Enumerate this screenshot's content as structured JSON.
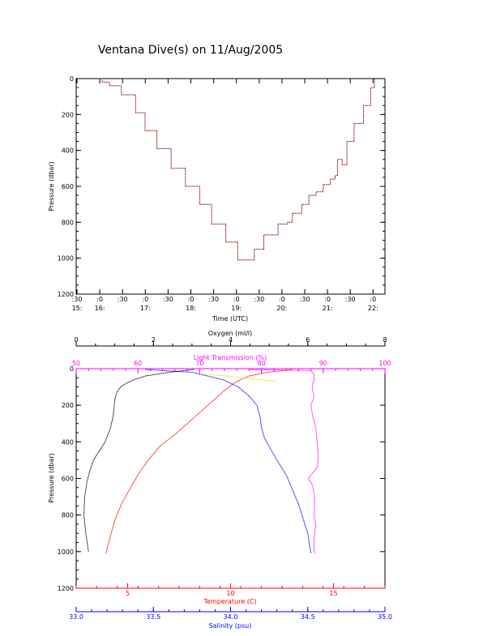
{
  "title": "Ventana Dive(s) on 11/Aug/2005",
  "colors": {
    "black": "#000000",
    "red": "#ff0000",
    "blue": "#0000ff",
    "magenta": "#ff00ff",
    "yellow": "#e6e600",
    "trace": "#8b0000"
  },
  "chart_data": [
    {
      "type": "line",
      "title": "Ventana Dive(s) on 11/Aug/2005",
      "xlabel": "Time (UTC)",
      "ylabel": "Pressure (dbar)",
      "ylim": [
        1200,
        0
      ],
      "yticks": [
        "0",
        "200",
        "400",
        "600",
        "800",
        "1000",
        "1200"
      ],
      "xticks": [
        {
          "top": ":30",
          "bottom": "15:"
        },
        {
          "top": ":0",
          "bottom": "16:"
        },
        {
          "top": ":30",
          "bottom": ""
        },
        {
          "top": ":0",
          "bottom": "17:"
        },
        {
          "top": ":30",
          "bottom": ""
        },
        {
          "top": ":0",
          "bottom": "18:"
        },
        {
          "top": ":30",
          "bottom": ""
        },
        {
          "top": ":0",
          "bottom": "19:"
        },
        {
          "top": ":30",
          "bottom": ""
        },
        {
          "top": ":0",
          "bottom": "20:"
        },
        {
          "top": ":30",
          "bottom": ""
        },
        {
          "top": ":0",
          "bottom": "21:"
        },
        {
          "top": ":30",
          "bottom": ""
        },
        {
          "top": ":0",
          "bottom": "22:"
        }
      ],
      "xlim_hours": [
        15.5,
        22.0
      ],
      "series": [
        {
          "color": "#8b0000",
          "points": [
            [
              16.0,
              0
            ],
            [
              16.05,
              20
            ],
            [
              16.2,
              40
            ],
            [
              16.45,
              90
            ],
            [
              16.75,
              190
            ],
            [
              16.95,
              290
            ],
            [
              17.2,
              390
            ],
            [
              17.5,
              500
            ],
            [
              17.8,
              600
            ],
            [
              18.1,
              700
            ],
            [
              18.35,
              810
            ],
            [
              18.65,
              910
            ],
            [
              18.9,
              1010
            ],
            [
              19.05,
              1010
            ],
            [
              19.25,
              950
            ],
            [
              19.45,
              870
            ],
            [
              19.75,
              810
            ],
            [
              19.95,
              800
            ],
            [
              20.05,
              750
            ],
            [
              20.25,
              700
            ],
            [
              20.4,
              650
            ],
            [
              20.55,
              630
            ],
            [
              20.7,
              590
            ],
            [
              20.85,
              560
            ],
            [
              20.95,
              540
            ],
            [
              21.0,
              450
            ],
            [
              21.1,
              480
            ],
            [
              21.2,
              350
            ],
            [
              21.35,
              250
            ],
            [
              21.55,
              150
            ],
            [
              21.7,
              50
            ],
            [
              21.78,
              0
            ]
          ]
        }
      ]
    },
    {
      "type": "line",
      "ylabel": "Pressure (dbar)",
      "ylim": [
        1200,
        0
      ],
      "yticks": [
        "0",
        "200",
        "400",
        "600",
        "800",
        "1000",
        "1200"
      ],
      "axes": {
        "oxygen": {
          "label": "Oxygen (ml/l)",
          "range": [
            0,
            8
          ],
          "ticks": [
            "0",
            "2",
            "4",
            "6",
            "8"
          ],
          "color": "#000000"
        },
        "light": {
          "label": "Light Transmission (%)",
          "range": [
            50,
            100
          ],
          "ticks": [
            "50",
            "60",
            "70",
            "80",
            "90",
            "100"
          ],
          "color": "#ff00ff"
        },
        "temperature": {
          "label": "Temperature (C)",
          "range": [
            2.5,
            17.5
          ],
          "ticks": [
            "5",
            "10",
            "15"
          ],
          "color": "#ff0000"
        },
        "salinity": {
          "label": "Salinity (psu)",
          "range": [
            33.0,
            35.0
          ],
          "ticks": [
            "33.0",
            "33.5",
            "34.0",
            "34.5",
            "35.0"
          ],
          "color": "#0000ff"
        }
      },
      "series": [
        {
          "axis": "oxygen",
          "color": "#000000",
          "points": [
            [
              3.05,
              5
            ],
            [
              2.4,
              20
            ],
            [
              1.8,
              40
            ],
            [
              1.5,
              60
            ],
            [
              1.3,
              80
            ],
            [
              1.15,
              100
            ],
            [
              1.05,
              130
            ],
            [
              1.0,
              170
            ],
            [
              0.98,
              220
            ],
            [
              0.95,
              270
            ],
            [
              0.88,
              330
            ],
            [
              0.75,
              400
            ],
            [
              0.6,
              450
            ],
            [
              0.45,
              500
            ],
            [
              0.35,
              560
            ],
            [
              0.28,
              620
            ],
            [
              0.22,
              700
            ],
            [
              0.2,
              800
            ],
            [
              0.25,
              900
            ],
            [
              0.32,
              1000
            ]
          ]
        },
        {
          "axis": "light",
          "color": "#ff00ff",
          "points": [
            [
              78,
              5
            ],
            [
              88,
              10
            ],
            [
              88.5,
              30
            ],
            [
              88.5,
              60
            ],
            [
              88.2,
              100
            ],
            [
              88.5,
              150
            ],
            [
              88.0,
              200
            ],
            [
              88.3,
              260
            ],
            [
              88.8,
              320
            ],
            [
              89.0,
              400
            ],
            [
              89.2,
              480
            ],
            [
              89.0,
              540
            ],
            [
              87.6,
              600
            ],
            [
              88.3,
              640
            ],
            [
              88.6,
              700
            ],
            [
              88.6,
              760
            ],
            [
              88.5,
              800
            ],
            [
              88.8,
              860
            ],
            [
              88.6,
              900
            ],
            [
              88.5,
              960
            ],
            [
              88.6,
              1010
            ]
          ]
        },
        {
          "axis": "temperature",
          "color": "#ff0000",
          "points": [
            [
              13.0,
              5
            ],
            [
              11.8,
              20
            ],
            [
              10.9,
              40
            ],
            [
              10.3,
              70
            ],
            [
              9.8,
              110
            ],
            [
              9.3,
              160
            ],
            [
              8.7,
              220
            ],
            [
              8.0,
              290
            ],
            [
              7.3,
              360
            ],
            [
              6.6,
              420
            ],
            [
              6.0,
              500
            ],
            [
              5.5,
              580
            ],
            [
              5.1,
              660
            ],
            [
              4.7,
              740
            ],
            [
              4.4,
              820
            ],
            [
              4.2,
              900
            ],
            [
              4.05,
              960
            ],
            [
              3.95,
              1010
            ]
          ]
        },
        {
          "axis": "salinity",
          "color": "#0000ff",
          "points": [
            [
              33.45,
              5
            ],
            [
              33.75,
              20
            ],
            [
              33.95,
              60
            ],
            [
              34.05,
              100
            ],
            [
              34.12,
              150
            ],
            [
              34.17,
              200
            ],
            [
              34.19,
              260
            ],
            [
              34.2,
              320
            ],
            [
              34.22,
              380
            ],
            [
              34.26,
              440
            ],
            [
              34.3,
              500
            ],
            [
              34.36,
              580
            ],
            [
              34.4,
              660
            ],
            [
              34.44,
              740
            ],
            [
              34.47,
              820
            ],
            [
              34.5,
              900
            ],
            [
              34.51,
              960
            ],
            [
              34.52,
              1010
            ]
          ]
        },
        {
          "axis": "oxygen",
          "color": "#e6e600",
          "points": [
            [
              3.3,
              30
            ],
            [
              3.9,
              40
            ],
            [
              4.5,
              55
            ],
            [
              5.2,
              70
            ]
          ]
        }
      ]
    }
  ]
}
